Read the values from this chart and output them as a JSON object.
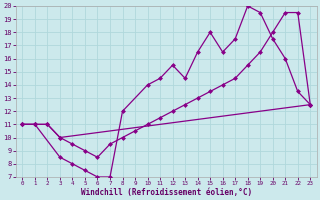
{
  "background_color": "#cce9ec",
  "grid_color": "#b0d8dc",
  "line_color": "#880088",
  "marker": "D",
  "markersize": 2.5,
  "linewidth": 0.9,
  "xlabel": "Windchill (Refroidissement éolien,°C)",
  "xlabel_color": "#660066",
  "tick_color": "#660066",
  "xlim": [
    -0.5,
    23.5
  ],
  "ylim": [
    7,
    20
  ],
  "xticks": [
    0,
    1,
    2,
    3,
    4,
    5,
    6,
    7,
    8,
    9,
    10,
    11,
    12,
    13,
    14,
    15,
    16,
    17,
    18,
    19,
    20,
    21,
    22,
    23
  ],
  "yticks": [
    7,
    8,
    9,
    10,
    11,
    12,
    13,
    14,
    15,
    16,
    17,
    18,
    19,
    20
  ],
  "line1_x": [
    0,
    1,
    3,
    4,
    5,
    6,
    7,
    8,
    10,
    11,
    12,
    13,
    14,
    15,
    16,
    17,
    18,
    19,
    20,
    21,
    22,
    23
  ],
  "line1_y": [
    11.0,
    11.0,
    8.5,
    8.0,
    7.5,
    7.0,
    7.0,
    12.0,
    14.0,
    14.5,
    15.5,
    14.5,
    16.5,
    18.0,
    16.5,
    17.5,
    20.0,
    19.5,
    17.5,
    16.0,
    13.5,
    12.5
  ],
  "line2_x": [
    0,
    1,
    2,
    3,
    4,
    5,
    6,
    7,
    8,
    9,
    10,
    11,
    12,
    13,
    14,
    15,
    16,
    17,
    18,
    19,
    20,
    21,
    22,
    23
  ],
  "line2_y": [
    11.0,
    11.0,
    11.0,
    10.0,
    9.5,
    9.0,
    8.5,
    9.5,
    10.0,
    10.5,
    11.0,
    11.5,
    12.0,
    12.5,
    13.0,
    13.5,
    14.0,
    14.5,
    15.5,
    16.5,
    18.0,
    19.5,
    19.5,
    12.5
  ],
  "line3_x": [
    0,
    1,
    2,
    3,
    23
  ],
  "line3_y": [
    11.0,
    11.0,
    11.0,
    10.0,
    12.5
  ]
}
